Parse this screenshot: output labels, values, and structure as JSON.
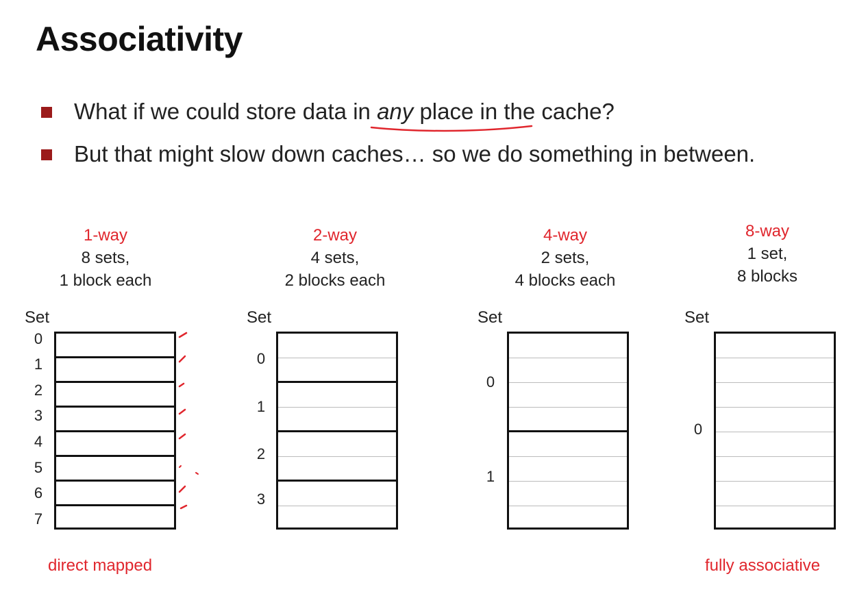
{
  "title": "Associativity",
  "bullets": {
    "b1_before": "What if we could store data in ",
    "b1_em": "any",
    "b1_after": " place in the cache?",
    "b2": "But that might slow down caches… so we do something in between."
  },
  "columns": [
    {
      "way": "1-way",
      "line1": "8 sets,",
      "line2": "1 block each",
      "set_label": "Set",
      "rows": [
        "0",
        "1",
        "2",
        "3",
        "4",
        "5",
        "6",
        "7"
      ]
    },
    {
      "way": "2-way",
      "line1": "4 sets,",
      "line2": "2 blocks each",
      "set_label": "Set",
      "rows": [
        "0",
        "1",
        "2",
        "3"
      ]
    },
    {
      "way": "4-way",
      "line1": "2 sets,",
      "line2": "4 blocks each",
      "set_label": "Set",
      "rows": [
        "0",
        "1"
      ]
    },
    {
      "way": "8-way",
      "line1": "1 set,",
      "line2": "8 blocks",
      "set_label": "Set",
      "rows": [
        "0"
      ]
    }
  ],
  "captions": {
    "left": "direct mapped",
    "right": "fully associative"
  },
  "colors": {
    "accent_red": "#e0262d",
    "bullet_square": "#9b1b1b"
  }
}
